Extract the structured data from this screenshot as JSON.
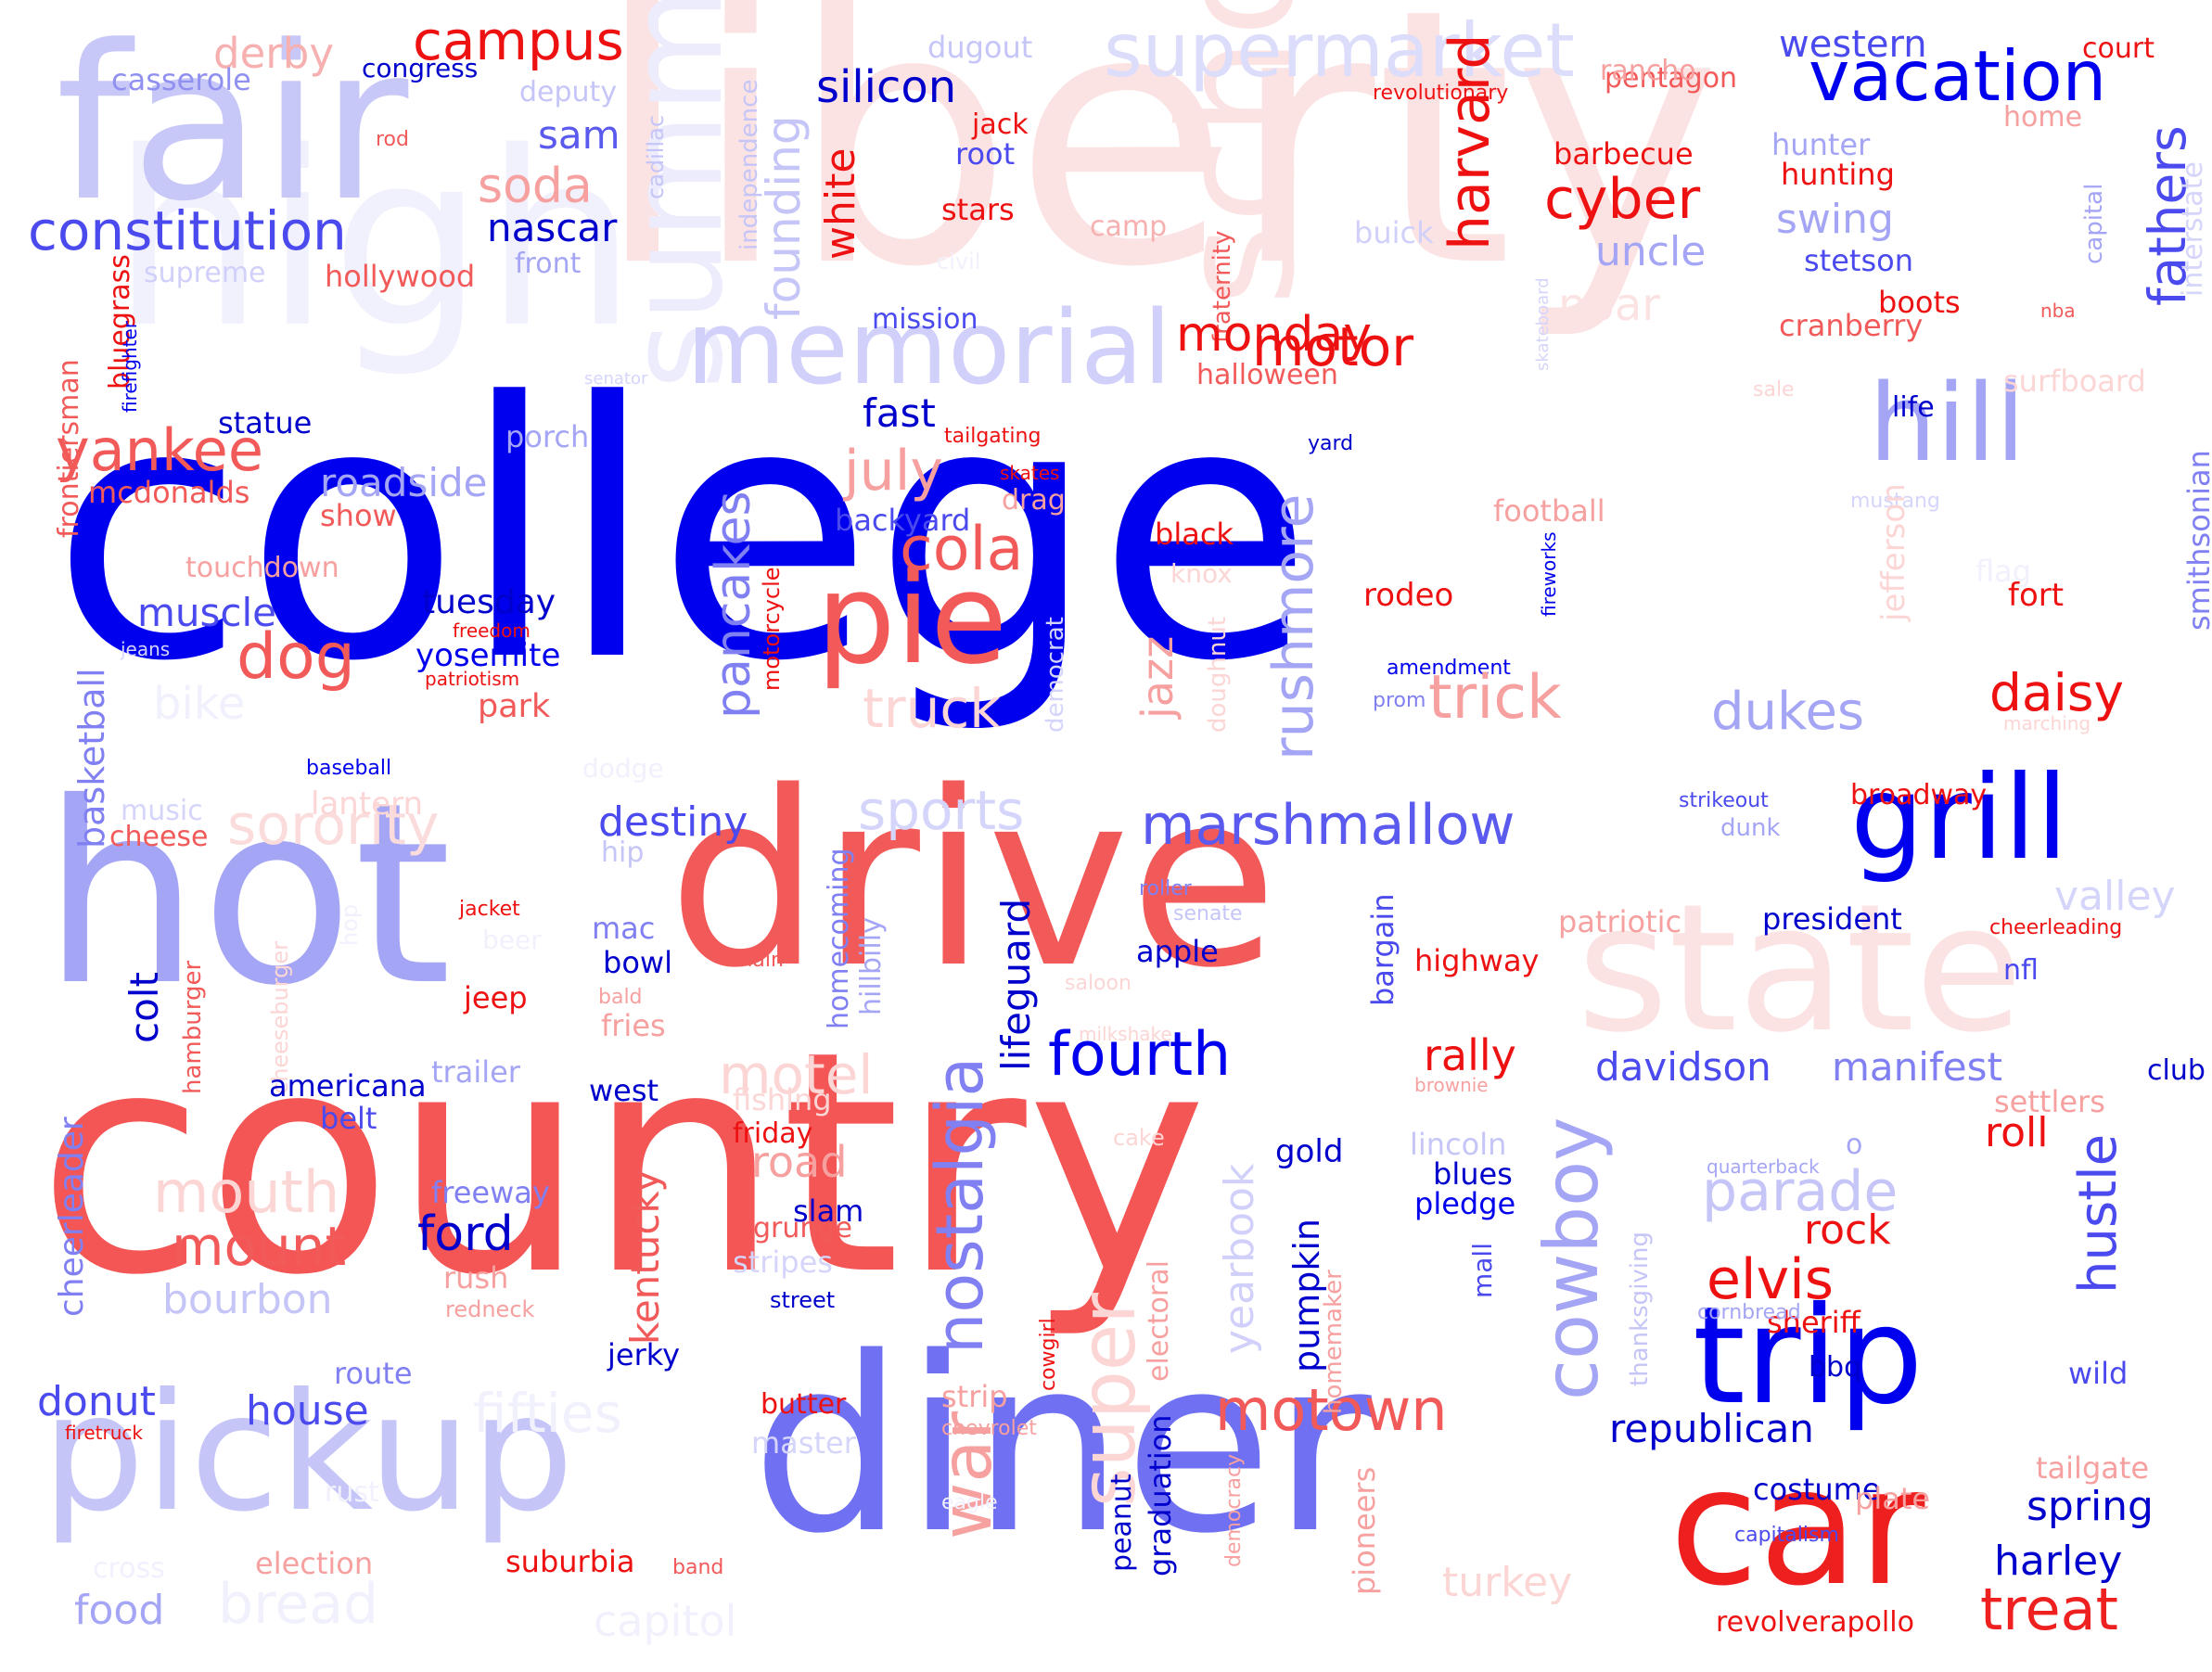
{
  "palette": {
    "deep_blue": "#0000ee",
    "mid_blue": "#5a5aee",
    "soft_blue": "#a5a5f5",
    "pale_blue": "#d5d5fb",
    "deep_red": "#ee1111",
    "mid_red": "#f25a5a",
    "soft_red": "#f7a0a0",
    "pale_red": "#fce0e0"
  },
  "words": [
    {
      "text": "liberty",
      "color": "#fce3e3"
    },
    {
      "text": "high",
      "color": "#f1f1fd"
    },
    {
      "text": "fair",
      "color": "#c8c8f8"
    },
    {
      "text": "school",
      "color": "#fce3e3"
    },
    {
      "text": "state",
      "color": "#fce3e3"
    },
    {
      "text": "summer",
      "color": "#ececfc"
    },
    {
      "text": "college",
      "color": "#0000ee"
    },
    {
      "text": "country",
      "color": "#f45555"
    },
    {
      "text": "hot",
      "color": "#a5a5f5"
    },
    {
      "text": "drive",
      "color": "#f25a5a"
    },
    {
      "text": "diner",
      "color": "#7070f2"
    },
    {
      "text": "pickup",
      "color": "#c5c5f8"
    },
    {
      "text": "car",
      "color": "#ee1f1f"
    },
    {
      "text": "grill",
      "color": "#0000ee"
    },
    {
      "text": "trip",
      "color": "#0000ee"
    },
    {
      "text": "pie",
      "color": "#f25a5a"
    },
    {
      "text": "memorial",
      "color": "#d0d0fa"
    },
    {
      "text": "supermarket",
      "color": "#dcdcfb"
    },
    {
      "text": "vacation",
      "color": "#0000ee"
    },
    {
      "text": "hill",
      "color": "#a5a5f5"
    },
    {
      "text": "constitution",
      "color": "#4a4aee"
    },
    {
      "text": "yankee",
      "color": "#f25a5a"
    },
    {
      "text": "sorority",
      "color": "#fbdcdc"
    },
    {
      "text": "marshmallow",
      "color": "#5a5aee"
    },
    {
      "text": "fourth",
      "color": "#0000ee"
    },
    {
      "text": "nostalgia",
      "color": "#8080f2"
    },
    {
      "text": "war",
      "color": "#f7a0a0"
    },
    {
      "text": "super",
      "color": "#fcd5d5"
    },
    {
      "text": "cowboy",
      "color": "#a5a5f5"
    },
    {
      "text": "motown",
      "color": "#f25a5a"
    },
    {
      "text": "treat",
      "color": "#ee2020"
    },
    {
      "text": "campus",
      "color": "#ee1111"
    },
    {
      "text": "derby",
      "color": "#f7b0b0"
    },
    {
      "text": "casserole",
      "color": "#9090f0"
    },
    {
      "text": "congress",
      "color": "#0000cc"
    },
    {
      "text": "deputy",
      "color": "#c5c5f8"
    },
    {
      "text": "sam",
      "color": "#5a5aee"
    },
    {
      "text": "soda",
      "color": "#f7a0a0"
    },
    {
      "text": "rod",
      "color": "#f25a5a"
    },
    {
      "text": "nascar",
      "color": "#0000cc"
    },
    {
      "text": "front",
      "color": "#a5a5f5"
    },
    {
      "text": "supreme",
      "color": "#d0d0fa"
    },
    {
      "text": "hollywood",
      "color": "#f25a5a"
    },
    {
      "text": "bluegrass",
      "color": "#ee1111"
    },
    {
      "text": "frontiersman",
      "color": "#f25a5a"
    },
    {
      "text": "firefighter",
      "color": "#0000ee"
    },
    {
      "text": "statue",
      "color": "#0000cc"
    },
    {
      "text": "mcdonalds",
      "color": "#f25a5a"
    },
    {
      "text": "senator",
      "color": "#d5d5fb"
    },
    {
      "text": "porch",
      "color": "#a5a5f5"
    },
    {
      "text": "roadside",
      "color": "#a5a5f5"
    },
    {
      "text": "show",
      "color": "#f25a5a"
    },
    {
      "text": "touchdown",
      "color": "#f7a0a0"
    },
    {
      "text": "muscle",
      "color": "#4a4aee"
    },
    {
      "text": "dog",
      "color": "#f25a5a"
    },
    {
      "text": "tuesday",
      "color": "#0000cc"
    },
    {
      "text": "freedom",
      "color": "#ee1111"
    },
    {
      "text": "yosemite",
      "color": "#0000ee"
    },
    {
      "text": "patriotism",
      "color": "#ee1111"
    },
    {
      "text": "park",
      "color": "#f25a5a"
    },
    {
      "text": "jeans",
      "color": "#d5d5fb"
    },
    {
      "text": "bike",
      "color": "#f1f1fd"
    },
    {
      "text": "basketball",
      "color": "#8080f2"
    },
    {
      "text": "baseball",
      "color": "#0000ee"
    },
    {
      "text": "lantern",
      "color": "#fcd5d5"
    },
    {
      "text": "music",
      "color": "#d5d5fb"
    },
    {
      "text": "cheese",
      "color": "#f25a5a"
    },
    {
      "text": "hip",
      "color": "#c5c5f8"
    },
    {
      "text": "dodge",
      "color": "#f1f1fd"
    },
    {
      "text": "destiny",
      "color": "#4a4aee"
    },
    {
      "text": "sports",
      "color": "#d5d5fb"
    },
    {
      "text": "independence",
      "color": "#c5c5f8"
    },
    {
      "text": "cadillac",
      "color": "#c5c5f8"
    },
    {
      "text": "founding",
      "color": "#c5c5f8"
    },
    {
      "text": "white",
      "color": "#ee1111"
    },
    {
      "text": "silicon",
      "color": "#0000cc"
    },
    {
      "text": "dugout",
      "color": "#c5c5f8"
    },
    {
      "text": "jack",
      "color": "#ee1111"
    },
    {
      "text": "root",
      "color": "#4a4aee"
    },
    {
      "text": "stars",
      "color": "#ee1111"
    },
    {
      "text": "civil",
      "color": "#f1f1fd"
    },
    {
      "text": "mission",
      "color": "#4a4aee"
    },
    {
      "text": "fast",
      "color": "#0000cc"
    },
    {
      "text": "tailgating",
      "color": "#ee1111"
    },
    {
      "text": "skates",
      "color": "#ee1111"
    },
    {
      "text": "drag",
      "color": "#f7a0a0"
    },
    {
      "text": "backyard",
      "color": "#4a4aee"
    },
    {
      "text": "july",
      "color": "#f7a0a0"
    },
    {
      "text": "pancakes",
      "color": "#8080f2"
    },
    {
      "text": "motorcycle",
      "color": "#ee1111"
    },
    {
      "text": "cola",
      "color": "#f25a5a"
    },
    {
      "text": "truck",
      "color": "#fcd5d5"
    },
    {
      "text": "camp",
      "color": "#f7b0b0"
    },
    {
      "text": "fraternity",
      "color": "#f25a5a"
    },
    {
      "text": "monday",
      "color": "#ee1111"
    },
    {
      "text": "halloween",
      "color": "#f25a5a"
    },
    {
      "text": "harvard",
      "color": "#ee1111"
    },
    {
      "text": "motor",
      "color": "#ee1111"
    },
    {
      "text": "black",
      "color": "#ee1111"
    },
    {
      "text": "knox",
      "color": "#fcd5d5"
    },
    {
      "text": "jazz",
      "color": "#f7a0a0"
    },
    {
      "text": "democrat",
      "color": "#d5d5fb"
    },
    {
      "text": "doughnut",
      "color": "#fcd5d5"
    },
    {
      "text": "rushmore",
      "color": "#a5a5f5"
    },
    {
      "text": "buick",
      "color": "#d0d0fa"
    },
    {
      "text": "cyber",
      "color": "#ee1111"
    },
    {
      "text": "nbar",
      "color": "#fce3e3"
    },
    {
      "text": "uncle",
      "color": "#a5a5f5"
    },
    {
      "text": "barbecue",
      "color": "#ee1111"
    },
    {
      "text": "pentagon",
      "color": "#f25a5a"
    },
    {
      "text": "rancho",
      "color": "#f7a0a0"
    },
    {
      "text": "revolutionary",
      "color": "#ee1111"
    },
    {
      "text": "western",
      "color": "#4a4aee"
    },
    {
      "text": "court",
      "color": "#ee1111"
    },
    {
      "text": "home",
      "color": "#f7a0a0"
    },
    {
      "text": "hunter",
      "color": "#a5a5f5"
    },
    {
      "text": "hunting",
      "color": "#ee1111"
    },
    {
      "text": "swing",
      "color": "#a5a5f5"
    },
    {
      "text": "stetson",
      "color": "#4a4aee"
    },
    {
      "text": "boots",
      "color": "#ee1111"
    },
    {
      "text": "cranberry",
      "color": "#f25a5a"
    },
    {
      "text": "nba",
      "color": "#f25a5a"
    },
    {
      "text": "capital",
      "color": "#a5a5f5"
    },
    {
      "text": "fathers",
      "color": "#4a4aee"
    },
    {
      "text": "interstate",
      "color": "#d5d5fb"
    },
    {
      "text": "skateboard",
      "color": "#d5d5fb"
    },
    {
      "text": "sale",
      "color": "#fcd5d5"
    },
    {
      "text": "surfboard",
      "color": "#fcd5d5"
    },
    {
      "text": "life",
      "color": "#0000cc"
    },
    {
      "text": "smithsonian",
      "color": "#8080f2"
    },
    {
      "text": "yard",
      "color": "#0000cc"
    },
    {
      "text": "mustang",
      "color": "#d5d5fb"
    },
    {
      "text": "football",
      "color": "#f7a0a0"
    },
    {
      "text": "jefferson",
      "color": "#fcd5d5"
    },
    {
      "text": "flag",
      "color": "#f1f1fd"
    },
    {
      "text": "fireworks",
      "color": "#0000ee"
    },
    {
      "text": "rodeo",
      "color": "#ee1111"
    },
    {
      "text": "fort",
      "color": "#ee1111"
    },
    {
      "text": "amendment",
      "color": "#0000ee"
    },
    {
      "text": "prom",
      "color": "#8080f2"
    },
    {
      "text": "trick",
      "color": "#f7a0a0"
    },
    {
      "text": "daisy",
      "color": "#ee1111"
    },
    {
      "text": "dukes",
      "color": "#a5a5f5"
    },
    {
      "text": "marching",
      "color": "#fcd5d5"
    },
    {
      "text": "broadway",
      "color": "#ee1111"
    },
    {
      "text": "strikeout",
      "color": "#4a4aee"
    },
    {
      "text": "dunk",
      "color": "#a5a5f5"
    },
    {
      "text": "valley",
      "color": "#d5d5fb"
    },
    {
      "text": "roller",
      "color": "#8080f2"
    },
    {
      "text": "senate",
      "color": "#c5c5f8"
    },
    {
      "text": "bargain",
      "color": "#4a4aee"
    },
    {
      "text": "patriotic",
      "color": "#f7a0a0"
    },
    {
      "text": "president",
      "color": "#0000cc"
    },
    {
      "text": "cheerleading",
      "color": "#ee1111"
    },
    {
      "text": "nfl",
      "color": "#4a4aee"
    },
    {
      "text": "highway",
      "color": "#ee1111"
    },
    {
      "text": "apple",
      "color": "#0000cc"
    },
    {
      "text": "homecoming",
      "color": "#8080f2"
    },
    {
      "text": "hillbilly",
      "color": "#a5a5f5"
    },
    {
      "text": "saloon",
      "color": "#fcd5d5"
    },
    {
      "text": "milkshake",
      "color": "#fcd5d5"
    },
    {
      "text": "lifeguard",
      "color": "#0000cc"
    },
    {
      "text": "colt",
      "color": "#0000cc"
    },
    {
      "text": "mac",
      "color": "#8080f2"
    },
    {
      "text": "bowl",
      "color": "#0000cc"
    },
    {
      "text": "main",
      "color": "#f25a5a"
    },
    {
      "text": "jacket",
      "color": "#ee1111"
    },
    {
      "text": "beer",
      "color": "#f1f1fd"
    },
    {
      "text": "hop",
      "color": "#f1f1fd"
    },
    {
      "text": "jeep",
      "color": "#ee1111"
    },
    {
      "text": "bald",
      "color": "#f7a0a0"
    },
    {
      "text": "fries",
      "color": "#f7a0a0"
    },
    {
      "text": "motel",
      "color": "#fcd5d5"
    },
    {
      "text": "cheeseburger",
      "color": "#fcd5d5"
    },
    {
      "text": "hamburger",
      "color": "#f25a5a"
    },
    {
      "text": "cheerleader",
      "color": "#8080f2"
    },
    {
      "text": "trailer",
      "color": "#a5a5f5"
    },
    {
      "text": "americana",
      "color": "#0000cc"
    },
    {
      "text": "belt",
      "color": "#4a4aee"
    },
    {
      "text": "west",
      "color": "#0000cc"
    },
    {
      "text": "rally",
      "color": "#ee1111"
    },
    {
      "text": "davidson",
      "color": "#4a4aee"
    },
    {
      "text": "manifest",
      "color": "#8080f2"
    },
    {
      "text": "club",
      "color": "#0000cc"
    },
    {
      "text": "settlers",
      "color": "#f7a0a0"
    },
    {
      "text": "roll",
      "color": "#ee1111"
    },
    {
      "text": "o",
      "color": "#a5a5f5"
    },
    {
      "text": "brownie",
      "color": "#f7a0a0"
    },
    {
      "text": "lincoln",
      "color": "#c5c5f8"
    },
    {
      "text": "blues",
      "color": "#0000cc"
    },
    {
      "text": "pledge",
      "color": "#0000ee"
    },
    {
      "text": "quarterback",
      "color": "#a5a5f5"
    },
    {
      "text": "parade",
      "color": "#c5c5f8"
    },
    {
      "text": "rock",
      "color": "#ee1111"
    },
    {
      "text": "elvis",
      "color": "#ee1111"
    },
    {
      "text": "hustle",
      "color": "#4a4aee"
    },
    {
      "text": "sheriff",
      "color": "#ee1111"
    },
    {
      "text": "bbq",
      "color": "#0000cc"
    },
    {
      "text": "wild",
      "color": "#4a4aee"
    },
    {
      "text": "thanksgiving",
      "color": "#c5c5f8"
    },
    {
      "text": "cornbread",
      "color": "#a5a5f5"
    },
    {
      "text": "mall",
      "color": "#4a4aee"
    },
    {
      "text": "yearbook",
      "color": "#d0d0fa"
    },
    {
      "text": "pumpkin",
      "color": "#0000cc"
    },
    {
      "text": "gold",
      "color": "#0000cc"
    },
    {
      "text": "homemaker",
      "color": "#f7a0a0"
    },
    {
      "text": "cowgirl",
      "color": "#ee1111"
    },
    {
      "text": "electoral",
      "color": "#f7a0a0"
    },
    {
      "text": "fishing",
      "color": "#fcd5d5"
    },
    {
      "text": "friday",
      "color": "#ee1111"
    },
    {
      "text": "road",
      "color": "#f7a0a0"
    },
    {
      "text": "slam",
      "color": "#0000cc"
    },
    {
      "text": "grunge",
      "color": "#f25a5a"
    },
    {
      "text": "stripes",
      "color": "#d5d5fb"
    },
    {
      "text": "street",
      "color": "#0000cc"
    },
    {
      "text": "kentucky",
      "color": "#f25a5a"
    },
    {
      "text": "jerky",
      "color": "#0000cc"
    },
    {
      "text": "freeway",
      "color": "#8080f2"
    },
    {
      "text": "ford",
      "color": "#0000cc"
    },
    {
      "text": "rush",
      "color": "#f7a0a0"
    },
    {
      "text": "redneck",
      "color": "#f7a0a0"
    },
    {
      "text": "mouth",
      "color": "#fcd5d5"
    },
    {
      "text": "mount",
      "color": "#f25a5a"
    },
    {
      "text": "bourbon",
      "color": "#c5c5f8"
    },
    {
      "text": "fifties",
      "color": "#f1f1fd"
    },
    {
      "text": "route",
      "color": "#8080f2"
    },
    {
      "text": "donut",
      "color": "#4a4aee"
    },
    {
      "text": "house",
      "color": "#4a4aee"
    },
    {
      "text": "firetruck",
      "color": "#ee1111"
    },
    {
      "text": "master",
      "color": "#d5d5fb"
    },
    {
      "text": "butter",
      "color": "#ee1111"
    },
    {
      "text": "strip",
      "color": "#f7a0a0"
    },
    {
      "text": "chevrolet",
      "color": "#f7a0a0"
    },
    {
      "text": "rust",
      "color": "#f1f1fd"
    },
    {
      "text": "eagle",
      "color": "#f1f1fd"
    },
    {
      "text": "cross",
      "color": "#f1f1fd"
    },
    {
      "text": "election",
      "color": "#f7a0a0"
    },
    {
      "text": "suburbia",
      "color": "#ee1111"
    },
    {
      "text": "band",
      "color": "#f25a5a"
    },
    {
      "text": "food",
      "color": "#a5a5f5"
    },
    {
      "text": "bread",
      "color": "#f1f1fd"
    },
    {
      "text": "capitol",
      "color": "#f1f1fd"
    },
    {
      "text": "peanut",
      "color": "#0000cc"
    },
    {
      "text": "graduation",
      "color": "#0000cc"
    },
    {
      "text": "democracy",
      "color": "#f7a0a0"
    },
    {
      "text": "pioneers",
      "color": "#f7a0a0"
    },
    {
      "text": "turkey",
      "color": "#fcd5d5"
    },
    {
      "text": "republican",
      "color": "#0000cc"
    },
    {
      "text": "costume",
      "color": "#0000cc"
    },
    {
      "text": "capitalism",
      "color": "#4a4aee"
    },
    {
      "text": "revolverapollo",
      "color": "#ee1111"
    },
    {
      "text": "spring",
      "color": "#0000cc"
    },
    {
      "text": "harley",
      "color": "#0000cc"
    },
    {
      "text": "plate",
      "color": "#f7a0a0"
    },
    {
      "text": "tailgate",
      "color": "#f7a0a0"
    },
    {
      "text": "cake",
      "color": "#fcd5d5"
    }
  ]
}
